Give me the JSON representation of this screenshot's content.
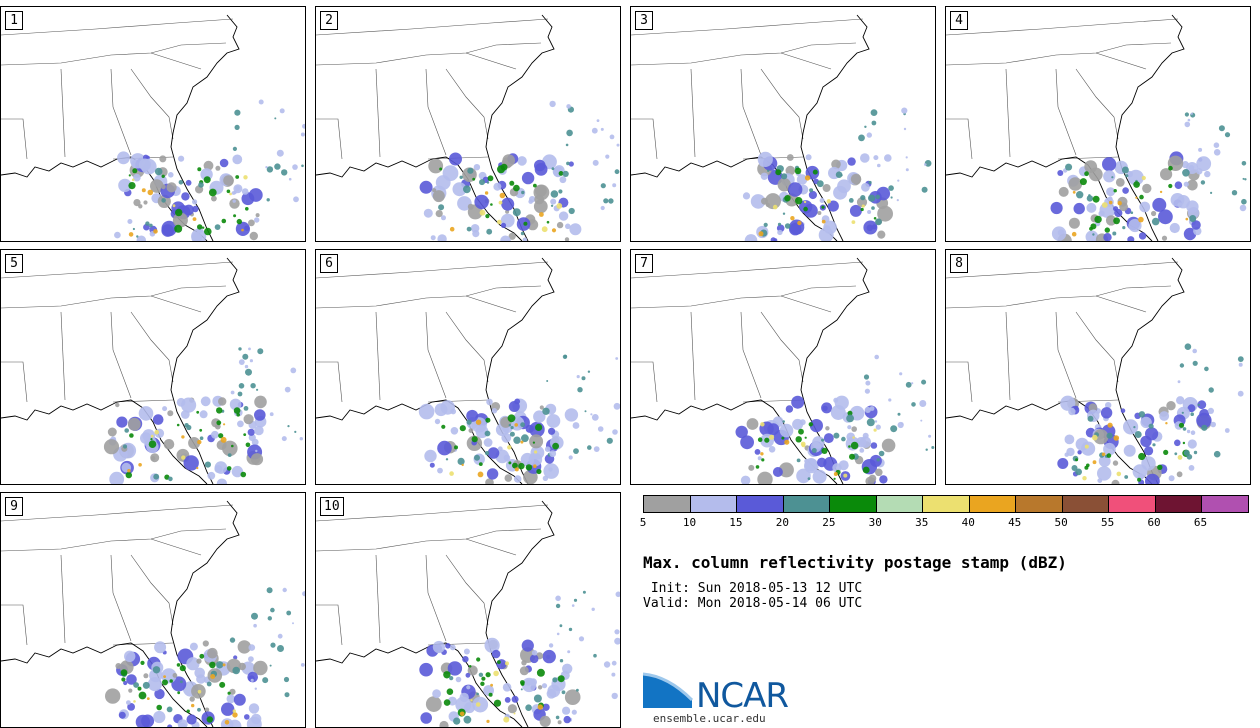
{
  "product": {
    "title": "Max. column reflectivity postage stamp (dBZ)",
    "init": " Init: Sun 2018-05-13 12 UTC",
    "valid": "Valid: Mon 2018-05-14 06 UTC"
  },
  "members": [
    {
      "label": "1"
    },
    {
      "label": "2"
    },
    {
      "label": "3"
    },
    {
      "label": "4"
    },
    {
      "label": "5"
    },
    {
      "label": "6"
    },
    {
      "label": "7"
    },
    {
      "label": "8"
    },
    {
      "label": "9"
    },
    {
      "label": "10"
    }
  ],
  "colorbar": {
    "colors": [
      "#a0a0a0",
      "#b4bcec",
      "#5a5ad8",
      "#4d9193",
      "#0a8a0a",
      "#b4dcb4",
      "#ece070",
      "#eaa520",
      "#b8782c",
      "#8a5036",
      "#f0507a",
      "#6e1432",
      "#b050b0"
    ],
    "ticks": [
      "5",
      "10",
      "15",
      "20",
      "25",
      "30",
      "35",
      "40",
      "45",
      "50",
      "55",
      "60",
      "65"
    ]
  },
  "branding": {
    "logo_text": "NCAR",
    "site": "ensemble.ucar.edu"
  }
}
